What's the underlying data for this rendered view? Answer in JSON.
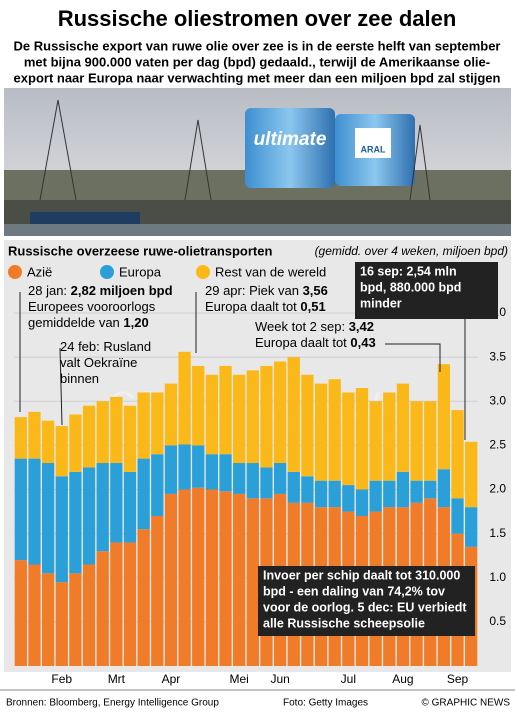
{
  "header": {
    "title": "Russische oliestromen over zee dalen",
    "subtitle": [
      "De Russische export van ruwe olie over zee is in de eerste helft van september",
      "met bijna 900.000 vaten per dag (bpd) gedaald., terwijl de Amerikaanse olie-",
      "export naar Europa naar verwachting met meer dan een miljoen bpd zal stijgen"
    ]
  },
  "photo_text": [
    "ultimate",
    "ARAL"
  ],
  "chart_data": {
    "type": "stacked_bar",
    "title": "Russische overzeese ruwe-olietransporten",
    "unit_note": "(gemidd. over 4 weken, miljoen bpd)",
    "categories": [
      null,
      null,
      null,
      "Feb",
      null,
      null,
      null,
      "Mrt",
      null,
      null,
      null,
      "Apr",
      null,
      null,
      null,
      null,
      "Mei",
      null,
      null,
      "Jun",
      null,
      null,
      null,
      null,
      "Jul",
      null,
      null,
      null,
      "Aug",
      null,
      null,
      null,
      "Sep",
      null
    ],
    "series": [
      {
        "name": "Azië",
        "color": "#f07c2a",
        "values": [
          1.2,
          1.15,
          1.05,
          0.95,
          1.05,
          1.15,
          1.3,
          1.4,
          1.4,
          1.55,
          1.7,
          1.95,
          2.0,
          2.02,
          2.0,
          1.98,
          1.95,
          1.9,
          1.9,
          1.95,
          1.85,
          1.85,
          1.8,
          1.8,
          1.75,
          1.7,
          1.75,
          1.8,
          1.8,
          1.85,
          1.9,
          1.8,
          1.5,
          1.35
        ]
      },
      {
        "name": "Europa",
        "color": "#2a9fd8",
        "values": [
          1.15,
          1.2,
          1.25,
          1.2,
          1.15,
          1.1,
          1.0,
          0.9,
          0.8,
          0.8,
          0.7,
          0.55,
          0.51,
          0.48,
          0.4,
          0.42,
          0.35,
          0.4,
          0.35,
          0.35,
          0.35,
          0.3,
          0.3,
          0.3,
          0.3,
          0.3,
          0.35,
          0.3,
          0.4,
          0.25,
          0.2,
          0.43,
          0.4,
          0.45
        ]
      },
      {
        "name": "Rest van de wereld",
        "color": "#fbb919",
        "values": [
          0.47,
          0.53,
          0.48,
          0.57,
          0.65,
          0.7,
          0.7,
          0.75,
          0.75,
          0.75,
          0.7,
          0.7,
          1.05,
          0.9,
          0.9,
          1.0,
          1.0,
          1.05,
          1.15,
          1.15,
          1.3,
          1.15,
          1.1,
          1.15,
          1.05,
          1.15,
          0.9,
          1.0,
          1.0,
          0.9,
          0.9,
          1.19,
          1.0,
          0.74
        ]
      }
    ],
    "ylim": [
      0,
      4
    ],
    "yticks": [
      0.5,
      {
        "value": 1,
        "label": "1.0"
      },
      1.5,
      {
        "value": 2,
        "label": "2.0"
      },
      2.5,
      {
        "value": 3,
        "label": "3.0"
      },
      3.5,
      {
        "value": 4,
        "label": "4.0"
      }
    ],
    "grid": true,
    "annotations": [
      {
        "lines": [
          [
            {
              "text": "28 jan: "
            },
            {
              "text": "2,82 miljoen bpd",
              "bold": true
            }
          ],
          [
            {
              "text": "Europees vooroorlogs"
            }
          ],
          [
            {
              "text": "gemiddelde van "
            },
            {
              "text": "1,20",
              "bold": true
            }
          ]
        ]
      },
      {
        "lines": [
          [
            {
              "text": "24 feb: Rusland"
            }
          ],
          [
            {
              "text": "valt Oekraïne"
            }
          ],
          [
            {
              "text": "binnen"
            }
          ]
        ]
      },
      {
        "lines": [
          [
            {
              "text": "29 apr: Piek van "
            },
            {
              "text": "3,56",
              "bold": true
            }
          ],
          [
            {
              "text": "Europa daalt tot "
            },
            {
              "text": "0,51",
              "bold": true
            }
          ]
        ]
      },
      {
        "lines": [
          [
            {
              "text": "Week tot 2 sep: "
            },
            {
              "text": "3,42",
              "bold": true
            }
          ],
          [
            {
              "text": "Europa daalt tot "
            },
            {
              "text": "0,43",
              "bold": true
            }
          ]
        ]
      }
    ],
    "boxes": [
      [
        "16 sep: 2,54 mln",
        "bpd, 880.000 bpd",
        "minder"
      ],
      [
        "Invoer per schip daalt tot 310.000",
        "bpd - een daling van 74,2% tov",
        "voor de oorlog. 5 dec: EU verbiedt",
        "alle Russische scheepsolie"
      ]
    ],
    "watermark": "GRAPHIC NEWS"
  },
  "footer": {
    "sources": "Bronnen: Bloomberg, Energy Intelligence Group",
    "photo": "Foto: Getty Images",
    "credit": "© GRAPHIC NEWS"
  }
}
